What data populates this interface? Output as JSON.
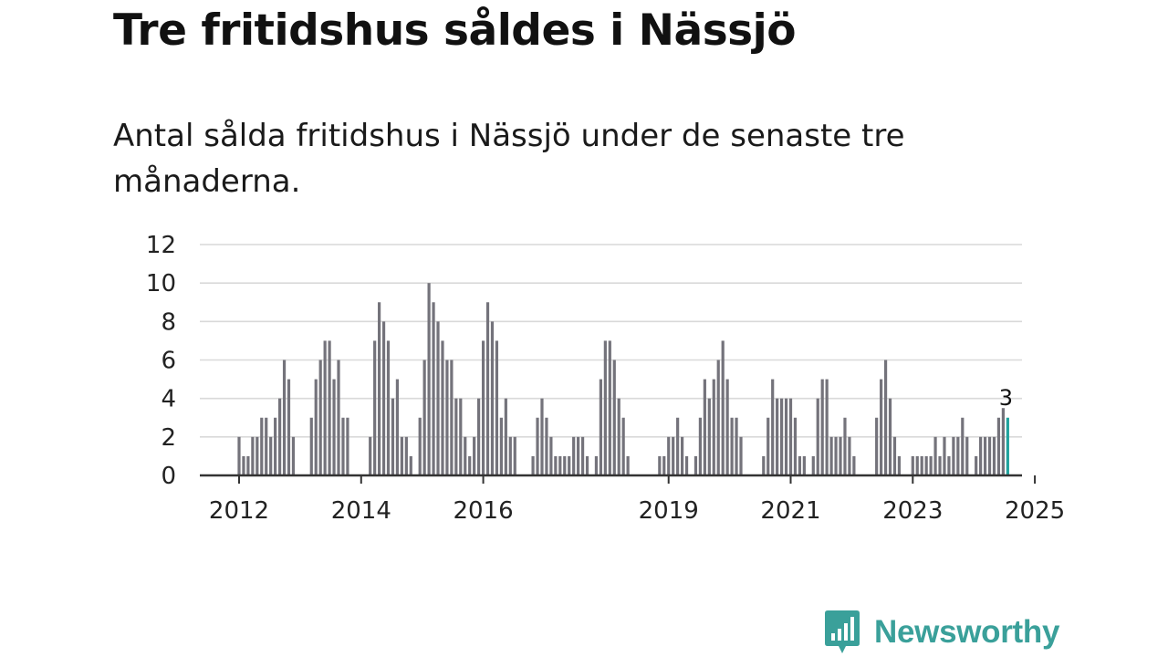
{
  "title": "Tre fritidshus såldes i Nässjö",
  "subtitle": "Antal sålda fritidshus i Nässjö under de senaste tre månaderna.",
  "brand": {
    "name": "Newsworthy",
    "icon": "newsworthy-chat-bars-icon",
    "color": "#3aa09a"
  },
  "colors": {
    "bar": "#74737b",
    "highlight": "#20a39e",
    "grid": "#d9d9d9",
    "axis": "#333333"
  },
  "chart_data": {
    "type": "bar",
    "title": "Tre fritidshus såldes i Nässjö",
    "subtitle": "Antal sålda fritidshus i Nässjö under de senaste tre månaderna.",
    "xlabel": "",
    "ylabel": "",
    "ylim": [
      0,
      12
    ],
    "yticks": [
      "0",
      "2",
      "4",
      "6",
      "8",
      "10",
      "12"
    ],
    "grid": true,
    "start": "2012-01",
    "interval": "month",
    "values": [
      2,
      1,
      1,
      2,
      2,
      3,
      3,
      2,
      3,
      4,
      6,
      5,
      2,
      0,
      0,
      0,
      3,
      5,
      6,
      7,
      7,
      5,
      6,
      3,
      3,
      0,
      0,
      0,
      0,
      2,
      7,
      9,
      8,
      7,
      4,
      5,
      2,
      2,
      1,
      0,
      3,
      6,
      10,
      9,
      8,
      7,
      6,
      6,
      4,
      4,
      2,
      1,
      2,
      4,
      7,
      9,
      8,
      7,
      3,
      4,
      2,
      2,
      0,
      0,
      0,
      1,
      3,
      4,
      3,
      2,
      1,
      1,
      1,
      1,
      2,
      2,
      2,
      1,
      0,
      1,
      5,
      7,
      7,
      6,
      4,
      3,
      1,
      0,
      0,
      0,
      0,
      0,
      0,
      1,
      1,
      2,
      2,
      3,
      2,
      1,
      0,
      1,
      3,
      5,
      4,
      5,
      6,
      7,
      5,
      3,
      3,
      2,
      0,
      0,
      0,
      0,
      1,
      3,
      5,
      4,
      4,
      4,
      4,
      3,
      1,
      1,
      0,
      1,
      4,
      5,
      5,
      2,
      2,
      2,
      3,
      2,
      1,
      0,
      0,
      0,
      0,
      3,
      5,
      6,
      4,
      2,
      1,
      0,
      0,
      1,
      1,
      1,
      1,
      1,
      2,
      1,
      2,
      1,
      2,
      2,
      3,
      2,
      0,
      1,
      2,
      2,
      2,
      2,
      3,
      3.5,
      3
    ],
    "highlight_last": true,
    "data_label": "3",
    "x_ticks": [
      {
        "label": "2012",
        "index": 0
      },
      {
        "label": "2014",
        "index": 27
      },
      {
        "label": "2016",
        "index": 54
      },
      {
        "label": "2019",
        "index": 95
      },
      {
        "label": "2021",
        "index": 122
      },
      {
        "label": "2023",
        "index": 149
      },
      {
        "label": "2025",
        "index": 176
      }
    ]
  }
}
